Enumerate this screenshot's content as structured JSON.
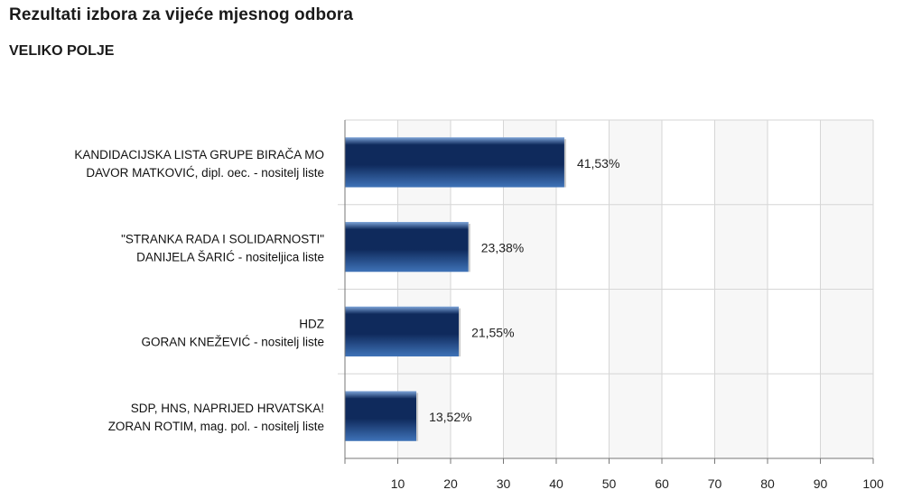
{
  "title": "Rezultati izbora za vijeće mjesnog odbora",
  "subtitle": "VELIKO POLJE",
  "colors": {
    "bar_dark": "#0f2a5c",
    "bar_light": "#3f73b8",
    "bar_top": "#7da4d8",
    "grid": "#d6d6d6",
    "band": "#f7f7f7",
    "axis": "#777777"
  },
  "chart_data": {
    "type": "bar",
    "orientation": "horizontal",
    "categories": [
      [
        "KANDIDACIJSKA LISTA GRUPE BIRAČA MO",
        "DAVOR MATKOVIĆ, dipl. oec. - nositelj liste"
      ],
      [
        "\"STRANKA RADA I SOLIDARNOSTI\"",
        "DANIJELA ŠARIĆ - nositeljica liste"
      ],
      [
        "HDZ",
        "GORAN KNEŽEVIĆ - nositelj liste"
      ],
      [
        "SDP, HNS, NAPRIJED HRVATSKA!",
        "ZORAN ROTIM, mag. pol. - nositelj liste"
      ]
    ],
    "values": [
      41.53,
      23.38,
      21.55,
      13.52
    ],
    "data_labels": [
      "41,53%",
      "23,38%",
      "21,55%",
      "13,52%"
    ],
    "xlim": [
      0,
      100
    ],
    "xticks": [
      10,
      20,
      30,
      40,
      50,
      60,
      70,
      80,
      90,
      100
    ],
    "grid": true,
    "xlabel": "",
    "ylabel": ""
  }
}
